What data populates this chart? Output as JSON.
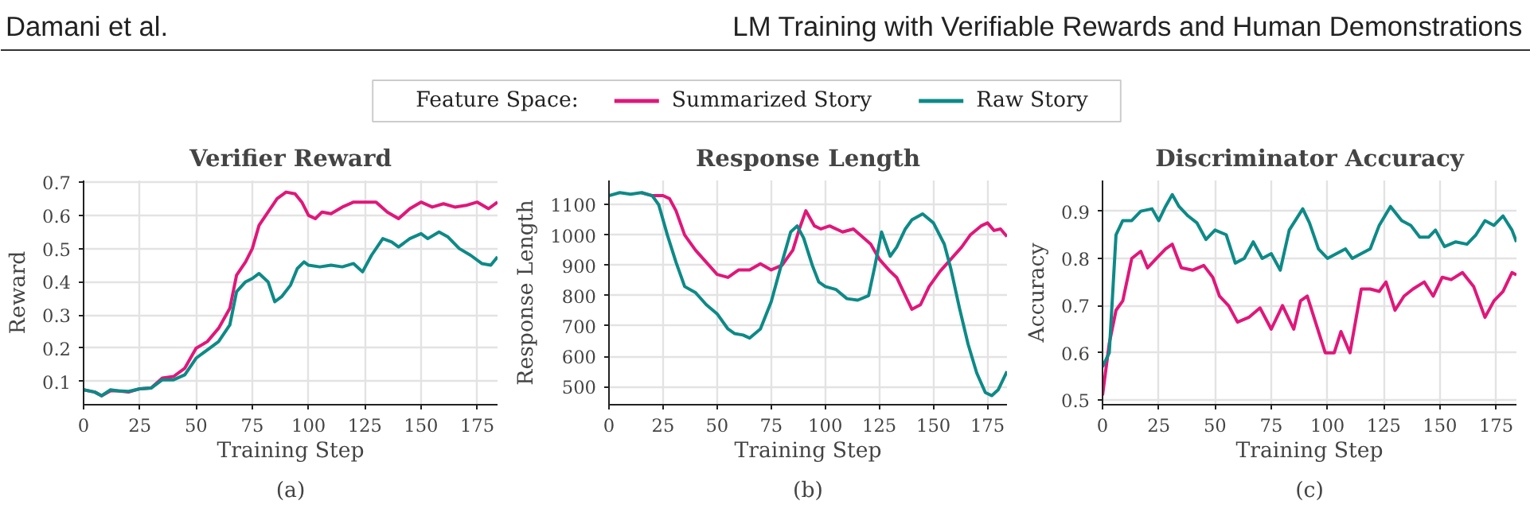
{
  "chart_data": [
    {
      "type": "line",
      "title": "Verifier Reward",
      "xlabel": "Training Step",
      "ylabel": "Reward",
      "legend": "top",
      "legend_title": "Feature Space:",
      "grid": true,
      "annotations": [
        "Damani et al.",
        "LM Training with Verifiable Rewards and Human Demonstrations",
        "(a)"
      ],
      "xlim": [
        0,
        184
      ],
      "xticks": [
        0,
        25,
        50,
        75,
        100,
        125,
        150,
        175
      ],
      "ylim": [
        0.03,
        0.705
      ],
      "yticks": [
        0.1,
        0.2,
        0.3,
        0.4,
        0.5,
        0.6,
        0.7
      ],
      "series": [
        {
          "name": "Summarized Story",
          "color": "#e0177a",
          "x": [
            0,
            5,
            8,
            12,
            15,
            20,
            25,
            30,
            35,
            40,
            45,
            50,
            55,
            60,
            65,
            68,
            72,
            75,
            78,
            82,
            86,
            90,
            94,
            97,
            100,
            103,
            106,
            110,
            115,
            120,
            125,
            130,
            135,
            140,
            145,
            150,
            155,
            160,
            165,
            170,
            175,
            180,
            184
          ],
          "values": [
            0.075,
            0.068,
            0.057,
            0.072,
            0.072,
            0.068,
            0.078,
            0.08,
            0.11,
            0.115,
            0.14,
            0.2,
            0.22,
            0.26,
            0.32,
            0.42,
            0.46,
            0.5,
            0.57,
            0.61,
            0.65,
            0.67,
            0.665,
            0.64,
            0.6,
            0.59,
            0.61,
            0.605,
            0.625,
            0.64,
            0.64,
            0.64,
            0.61,
            0.59,
            0.62,
            0.64,
            0.625,
            0.635,
            0.625,
            0.63,
            0.64,
            0.62,
            0.64
          ]
        },
        {
          "name": "Raw Story",
          "color": "#0d8a87",
          "x": [
            0,
            5,
            8,
            12,
            15,
            20,
            25,
            30,
            35,
            40,
            45,
            50,
            55,
            60,
            65,
            68,
            72,
            75,
            78,
            82,
            85,
            88,
            92,
            95,
            98,
            100,
            105,
            110,
            115,
            120,
            124,
            128,
            133,
            137,
            140,
            145,
            150,
            153,
            158,
            162,
            167,
            172,
            177,
            181,
            184
          ],
          "values": [
            0.075,
            0.068,
            0.057,
            0.075,
            0.072,
            0.07,
            0.078,
            0.08,
            0.105,
            0.105,
            0.12,
            0.17,
            0.195,
            0.22,
            0.27,
            0.37,
            0.4,
            0.41,
            0.425,
            0.4,
            0.34,
            0.355,
            0.39,
            0.44,
            0.46,
            0.45,
            0.445,
            0.45,
            0.445,
            0.455,
            0.43,
            0.48,
            0.53,
            0.52,
            0.505,
            0.53,
            0.545,
            0.53,
            0.55,
            0.535,
            0.5,
            0.48,
            0.455,
            0.45,
            0.475
          ]
        }
      ]
    },
    {
      "type": "line",
      "title": "Response Length",
      "xlabel": "Training Step",
      "ylabel": "Response Length",
      "grid": true,
      "annotations": [
        "(b)"
      ],
      "xlim": [
        0,
        184
      ],
      "xticks": [
        0,
        25,
        50,
        75,
        100,
        125,
        150,
        175
      ],
      "ylim": [
        440,
        1180
      ],
      "yticks": [
        500,
        600,
        700,
        800,
        900,
        1000,
        1100
      ],
      "series": [
        {
          "name": "Summarized Story",
          "color": "#e0177a",
          "x": [
            15,
            20,
            25,
            28,
            31,
            35,
            40,
            45,
            50,
            55,
            60,
            65,
            70,
            75,
            80,
            85,
            88,
            91,
            95,
            98,
            102,
            108,
            113,
            117,
            121,
            125,
            130,
            133,
            137,
            140,
            144,
            148,
            153,
            158,
            163,
            167,
            172,
            175,
            178,
            181,
            184
          ],
          "values": [
            1140,
            1130,
            1130,
            1120,
            1080,
            1000,
            950,
            910,
            870,
            860,
            885,
            885,
            905,
            885,
            900,
            950,
            1020,
            1080,
            1030,
            1020,
            1030,
            1010,
            1020,
            995,
            970,
            920,
            880,
            860,
            800,
            755,
            770,
            830,
            880,
            920,
            960,
            1000,
            1030,
            1040,
            1015,
            1020,
            995
          ]
        },
        {
          "name": "Raw Story",
          "color": "#0d8a87",
          "x": [
            0,
            5,
            10,
            15,
            20,
            23,
            27,
            31,
            35,
            40,
            45,
            50,
            55,
            58,
            62,
            65,
            70,
            75,
            80,
            84,
            87,
            90,
            94,
            97,
            100,
            105,
            110,
            115,
            120,
            123,
            126,
            130,
            133,
            137,
            140,
            145,
            150,
            155,
            158,
            162,
            166,
            170,
            174,
            177,
            180,
            184
          ],
          "values": [
            1130,
            1140,
            1135,
            1140,
            1130,
            1100,
            1000,
            910,
            830,
            810,
            770,
            740,
            690,
            675,
            670,
            660,
            690,
            780,
            910,
            1010,
            1030,
            990,
            900,
            845,
            830,
            820,
            790,
            785,
            800,
            900,
            1010,
            930,
            960,
            1020,
            1050,
            1070,
            1040,
            970,
            890,
            760,
            640,
            545,
            480,
            470,
            490,
            550
          ]
        }
      ]
    },
    {
      "type": "line",
      "title": "Discriminator Accuracy",
      "xlabel": "Training Step",
      "ylabel": "Accuracy",
      "grid": true,
      "annotations": [
        "(c)"
      ],
      "xlim": [
        0,
        184
      ],
      "xticks": [
        0,
        25,
        50,
        75,
        100,
        125,
        150,
        175
      ],
      "ylim": [
        0.49,
        0.965
      ],
      "yticks": [
        0.5,
        0.6,
        0.7,
        0.8,
        0.9
      ],
      "series": [
        {
          "name": "Summarized Story",
          "color": "#e0177a",
          "x": [
            0,
            3,
            6,
            9,
            13,
            17,
            20,
            24,
            28,
            31,
            35,
            40,
            45,
            49,
            52,
            56,
            60,
            65,
            70,
            75,
            80,
            85,
            88,
            91,
            95,
            99,
            103,
            106,
            110,
            115,
            119,
            123,
            126,
            130,
            134,
            138,
            143,
            147,
            151,
            155,
            160,
            165,
            170,
            174,
            178,
            182,
            184
          ],
          "values": [
            0.51,
            0.62,
            0.69,
            0.71,
            0.8,
            0.815,
            0.78,
            0.8,
            0.82,
            0.83,
            0.78,
            0.775,
            0.785,
            0.76,
            0.72,
            0.7,
            0.665,
            0.675,
            0.695,
            0.65,
            0.7,
            0.65,
            0.71,
            0.72,
            0.66,
            0.6,
            0.6,
            0.645,
            0.6,
            0.735,
            0.735,
            0.73,
            0.75,
            0.69,
            0.72,
            0.735,
            0.75,
            0.72,
            0.76,
            0.755,
            0.77,
            0.74,
            0.675,
            0.71,
            0.73,
            0.77,
            0.765
          ]
        },
        {
          "name": "Raw Story",
          "color": "#0d8a87",
          "x": [
            0,
            3,
            6,
            9,
            13,
            17,
            22,
            25,
            28,
            31,
            34,
            38,
            42,
            46,
            50,
            55,
            59,
            63,
            67,
            71,
            75,
            79,
            83,
            89,
            92,
            96,
            100,
            104,
            108,
            111,
            115,
            119,
            123,
            128,
            133,
            137,
            141,
            145,
            148,
            152,
            157,
            162,
            166,
            170,
            174,
            178,
            182,
            184
          ],
          "values": [
            0.57,
            0.6,
            0.85,
            0.88,
            0.88,
            0.9,
            0.905,
            0.88,
            0.91,
            0.935,
            0.91,
            0.89,
            0.875,
            0.84,
            0.86,
            0.85,
            0.79,
            0.8,
            0.835,
            0.8,
            0.81,
            0.775,
            0.86,
            0.905,
            0.875,
            0.82,
            0.8,
            0.81,
            0.82,
            0.8,
            0.81,
            0.82,
            0.87,
            0.91,
            0.88,
            0.87,
            0.845,
            0.845,
            0.86,
            0.825,
            0.835,
            0.83,
            0.85,
            0.88,
            0.87,
            0.89,
            0.86,
            0.835
          ]
        }
      ]
    }
  ]
}
